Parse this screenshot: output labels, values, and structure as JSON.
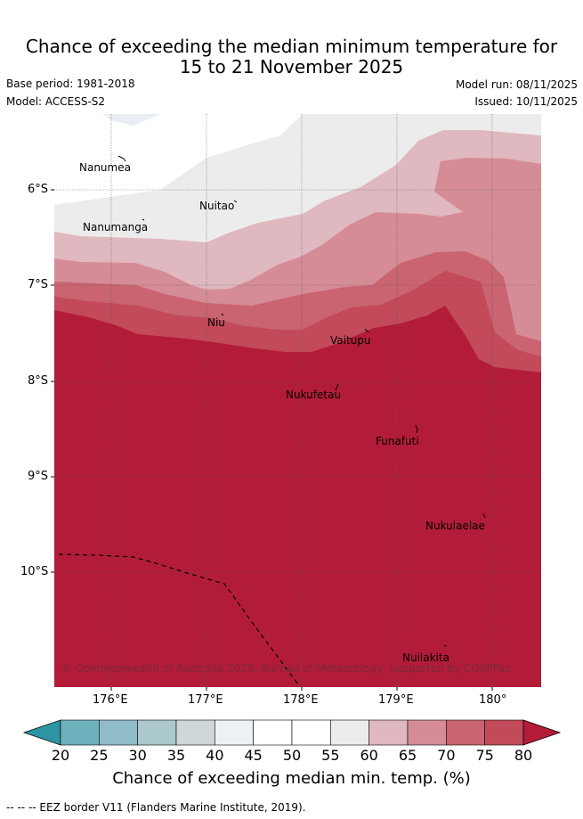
{
  "title": {
    "line1": "Chance of exceeding the median minimum temperature for",
    "line2": "15 to 21 November 2025"
  },
  "meta": {
    "base_period": "Base period: 1981-2018",
    "model": "Model: ACCESS-S2",
    "model_run": "Model run: 08/11/2025",
    "issued": "Issued: 10/11/2025"
  },
  "map": {
    "places": [
      {
        "name": "Nanumea"
      },
      {
        "name": "Nuitao"
      },
      {
        "name": "Nanumanga"
      },
      {
        "name": "Niu"
      },
      {
        "name": "Vaitupu"
      },
      {
        "name": "Nukufetau"
      },
      {
        "name": "Funafuti"
      },
      {
        "name": "Nukulaelae"
      },
      {
        "name": "Nuilakita"
      }
    ],
    "lat_ticks": [
      "6°S",
      "7°S",
      "8°S",
      "9°S",
      "10°S"
    ],
    "lon_ticks": [
      "176°E",
      "177°E",
      "178°E",
      "179°E",
      "180°"
    ],
    "copyright": "© Commonwealth of Australia 2025, Bureau of Meteorology, supported by COSPPac"
  },
  "colorbar": {
    "labels": [
      "20",
      "25",
      "30",
      "35",
      "40",
      "45",
      "50",
      "55",
      "60",
      "65",
      "70",
      "75",
      "80"
    ],
    "colors": [
      "#2e95a5",
      "#6eb1bd",
      "#8fbcc8",
      "#abc8cc",
      "#cfd7da",
      "#ebf1f5",
      "#ffffff",
      "#ffffff",
      "#edecec",
      "#e0b8bf",
      "#d58c96",
      "#c96470",
      "#c24a59",
      "#b31c38"
    ],
    "title": "Chance of exceeding median min. temp. (%)"
  },
  "footnote": "--  --  -- EEZ border V11 (Flanders Marine Institute, 2019)."
}
